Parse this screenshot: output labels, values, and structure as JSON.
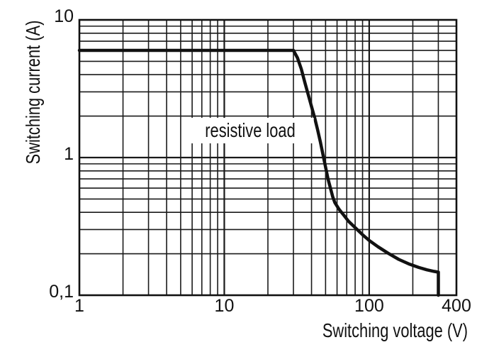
{
  "chart_data": {
    "type": "line",
    "title": "",
    "xlabel": "Switching voltage (V)",
    "ylabel": "Switching current (A)",
    "x_scale": "log",
    "y_scale": "log",
    "x_range": [
      1,
      400
    ],
    "y_range": [
      0.1,
      10
    ],
    "grid": true,
    "legend": "none",
    "annotation": {
      "text": "resistive load"
    },
    "x_ticks": [
      {
        "value": 1,
        "label": "1"
      },
      {
        "value": 10,
        "label": "10"
      },
      {
        "value": 100,
        "label": "100"
      },
      {
        "value": 400,
        "label": "400"
      }
    ],
    "y_ticks": [
      {
        "value": 10,
        "label": "10"
      },
      {
        "value": 1,
        "label": "1"
      },
      {
        "value": 0.1,
        "label": "0,1"
      }
    ],
    "x_grid_major": [
      10,
      100
    ],
    "x_grid_minor": [
      2,
      3,
      4,
      5,
      6,
      7,
      8,
      9,
      20,
      30,
      40,
      50,
      60,
      70,
      80,
      90,
      200,
      300
    ],
    "y_grid_major": [
      1
    ],
    "y_grid_minor": [
      0.2,
      0.3,
      0.4,
      0.5,
      0.6,
      0.7,
      0.8,
      0.9,
      2,
      3,
      4,
      5,
      6,
      7,
      8,
      9
    ],
    "series": [
      {
        "name": "resistive load",
        "points": [
          [
            1,
            6
          ],
          [
            30,
            6
          ],
          [
            32,
            5.3
          ],
          [
            34,
            4.4
          ],
          [
            36,
            3.5
          ],
          [
            38,
            2.85
          ],
          [
            40,
            2.35
          ],
          [
            42,
            1.95
          ],
          [
            44,
            1.6
          ],
          [
            46,
            1.3
          ],
          [
            48,
            1.05
          ],
          [
            50,
            0.85
          ],
          [
            52,
            0.7
          ],
          [
            54,
            0.6
          ],
          [
            56,
            0.52
          ],
          [
            58,
            0.47
          ],
          [
            62,
            0.42
          ],
          [
            67,
            0.38
          ],
          [
            72,
            0.345
          ],
          [
            80,
            0.31
          ],
          [
            90,
            0.275
          ],
          [
            100,
            0.25
          ],
          [
            115,
            0.225
          ],
          [
            135,
            0.202
          ],
          [
            160,
            0.182
          ],
          [
            190,
            0.168
          ],
          [
            220,
            0.159
          ],
          [
            250,
            0.153
          ],
          [
            280,
            0.149
          ],
          [
            300,
            0.147
          ],
          [
            300,
            0.1
          ]
        ]
      }
    ],
    "line_color": "#111111",
    "grid_color": "#1a1a1a",
    "border_color": "#111111",
    "background": "#ffffff"
  }
}
